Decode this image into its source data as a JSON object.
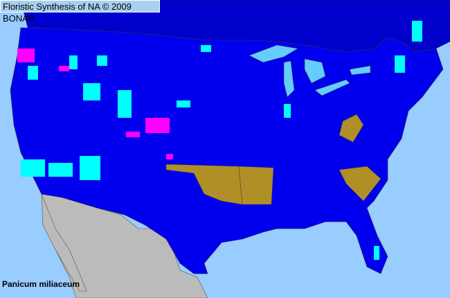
{
  "title": "Floristic Synthesis of NA © 2009 BONAP",
  "species_name": "Panicum miliaceum",
  "colors": {
    "ocean": "#99ccff",
    "lakes": "#66ccff",
    "present_county": "#0000ee",
    "canada": "#0000cc",
    "mexico": "#bbbbbb",
    "county_present_cyan": "#00ffff",
    "county_noxious_magenta": "#ff00ff",
    "state_olive": "#b08f26"
  }
}
